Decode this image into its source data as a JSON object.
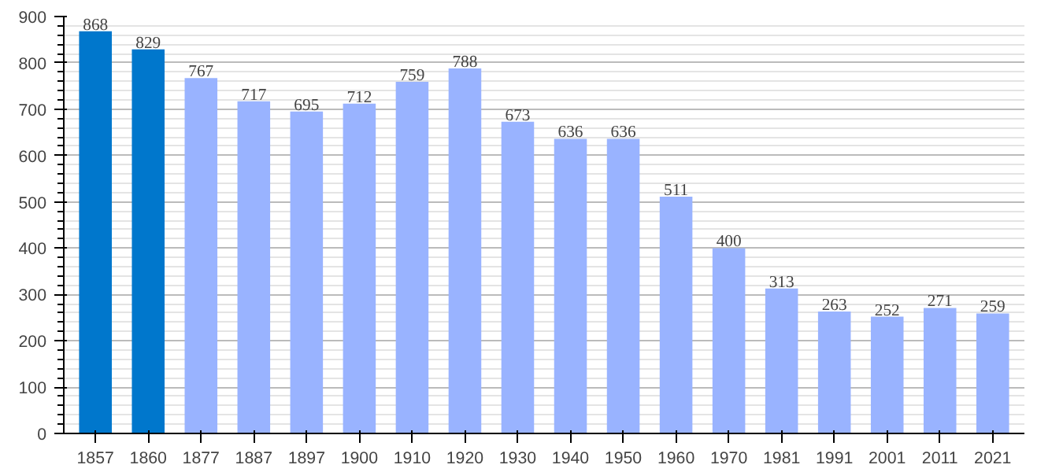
{
  "chart_data": {
    "type": "bar",
    "categories": [
      "1857",
      "1860",
      "1877",
      "1887",
      "1897",
      "1900",
      "1910",
      "1920",
      "1930",
      "1940",
      "1950",
      "1960",
      "1970",
      "1981",
      "1991",
      "2001",
      "2011",
      "2021"
    ],
    "values": [
      868,
      829,
      767,
      717,
      695,
      712,
      759,
      788,
      673,
      636,
      636,
      511,
      400,
      313,
      263,
      252,
      271,
      259
    ],
    "colors": [
      "#0077cc",
      "#0077cc",
      "#99b3ff",
      "#99b3ff",
      "#99b3ff",
      "#99b3ff",
      "#99b3ff",
      "#99b3ff",
      "#99b3ff",
      "#99b3ff",
      "#99b3ff",
      "#99b3ff",
      "#99b3ff",
      "#99b3ff",
      "#99b3ff",
      "#99b3ff",
      "#99b3ff",
      "#99b3ff"
    ],
    "ylim": [
      0,
      900
    ],
    "yticks": [
      0,
      100,
      200,
      300,
      400,
      500,
      600,
      700,
      800,
      900
    ],
    "grid": "y",
    "data_labels": true
  }
}
